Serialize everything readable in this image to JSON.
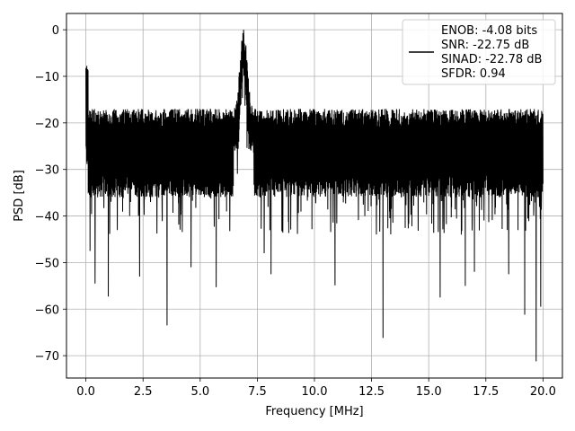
{
  "chart_data": {
    "type": "line",
    "title": "",
    "xlabel": "Frequency [MHz]",
    "ylabel": "PSD [dB]",
    "xlim": [
      -0.85,
      20.85
    ],
    "ylim": [
      -74.8,
      3.5
    ],
    "xticks": [
      0.0,
      2.5,
      5.0,
      7.5,
      10.0,
      12.5,
      15.0,
      17.5,
      20.0
    ],
    "xtick_labels": [
      "0.0",
      "2.5",
      "5.0",
      "7.5",
      "10.0",
      "12.5",
      "15.0",
      "17.5",
      "20.0"
    ],
    "yticks": [
      0,
      -10,
      -20,
      -30,
      -40,
      -50,
      -60,
      -70
    ],
    "ytick_labels": [
      "0",
      "−10",
      "−20",
      "−30",
      "−40",
      "−50",
      "−60",
      "−70"
    ],
    "grid": true,
    "legend_position": "top-right",
    "line_color": "#000000",
    "series": [
      {
        "x_range": [
          0.0,
          20.0
        ],
        "baseline": {
          "upper": -17,
          "lower": -36
        },
        "peak": {
          "x": 6.9,
          "y": 0.0
        },
        "deep_nulls": [
          {
            "x": 0.18,
            "y": -47.5
          },
          {
            "x": 0.4,
            "y": -54.5
          },
          {
            "x": 0.98,
            "y": -57.3
          },
          {
            "x": 2.35,
            "y": -53.0
          },
          {
            "x": 3.55,
            "y": -63.5
          },
          {
            "x": 4.6,
            "y": -51.0
          },
          {
            "x": 5.7,
            "y": -55.3
          },
          {
            "x": 7.8,
            "y": -48.0
          },
          {
            "x": 8.1,
            "y": -52.5
          },
          {
            "x": 10.9,
            "y": -54.9
          },
          {
            "x": 13.0,
            "y": -66.2
          },
          {
            "x": 15.5,
            "y": -57.5
          },
          {
            "x": 16.6,
            "y": -55.0
          },
          {
            "x": 17.0,
            "y": -52.0
          },
          {
            "x": 18.5,
            "y": -52.5
          },
          {
            "x": 19.2,
            "y": -61.2
          },
          {
            "x": 19.7,
            "y": -71.2
          },
          {
            "x": 19.9,
            "y": -59.5
          }
        ]
      }
    ]
  },
  "legend": {
    "lines": [
      "ENOB: -4.08 bits",
      "SNR: -22.75 dB",
      "SINAD: -22.78 dB",
      "SFDR: 0.94"
    ]
  }
}
